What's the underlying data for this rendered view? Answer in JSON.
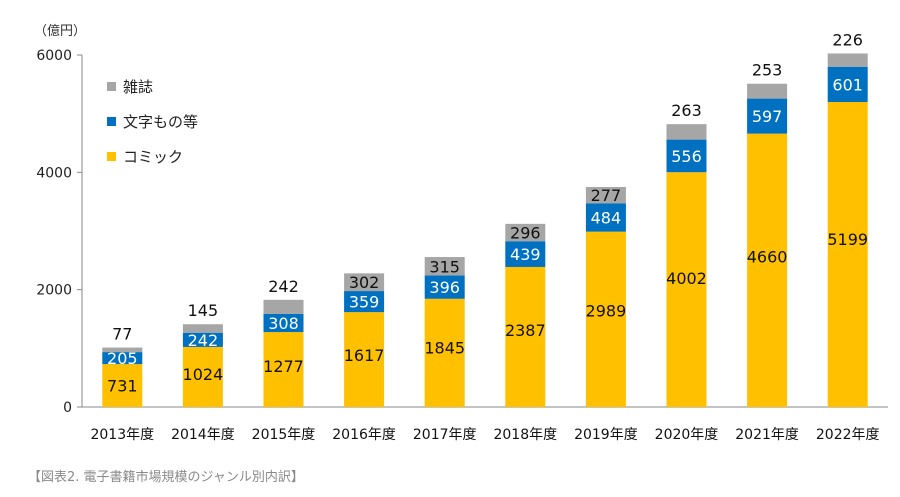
{
  "caption": "【図表2. 電子書籍市場規模のジャンル別内訳】",
  "chart_data": {
    "type": "bar",
    "stacked": true,
    "unit_label": "（億円）",
    "categories": [
      "2013年度",
      "2014年度",
      "2015年度",
      "2016年度",
      "2017年度",
      "2018年度",
      "2019年度",
      "2020年度",
      "2021年度",
      "2022年度"
    ],
    "series": [
      {
        "name": "コミック",
        "color": "#FFC000",
        "values": [
          731,
          1024,
          1277,
          1617,
          1845,
          2387,
          2989,
          4002,
          4660,
          5199
        ]
      },
      {
        "name": "文字もの等",
        "color": "#0070C0",
        "values": [
          205,
          242,
          308,
          359,
          396,
          439,
          484,
          556,
          597,
          601
        ]
      },
      {
        "name": "雑誌",
        "color": "#A6A6A6",
        "values": [
          77,
          145,
          242,
          302,
          315,
          296,
          277,
          263,
          253,
          226
        ]
      }
    ],
    "legend_order": [
      "雑誌",
      "文字もの等",
      "コミック"
    ],
    "legend_position": "top-left",
    "ylim": [
      0,
      6000
    ],
    "yticks": [
      "0",
      "2000",
      "4000",
      "6000"
    ],
    "ytick_values": [
      0,
      2000,
      4000,
      6000
    ],
    "grid": false
  }
}
